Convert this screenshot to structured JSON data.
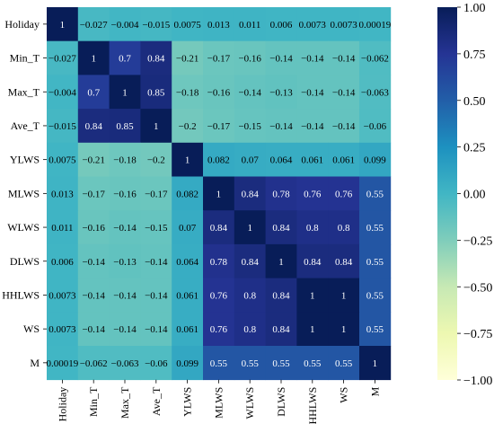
{
  "chart_data": {
    "type": "heatmap",
    "title": "",
    "xlabel": "",
    "ylabel": "",
    "labels": [
      "Holiday",
      "Min_T",
      "Max_T",
      "Ave_T",
      "YLWS",
      "MLWS",
      "WLWS",
      "DLWS",
      "HHLWS",
      "WS",
      "M"
    ],
    "values": [
      [
        1,
        -0.027,
        -0.004,
        -0.015,
        0.0075,
        0.013,
        0.011,
        0.006,
        0.0073,
        0.0073,
        0.00019
      ],
      [
        -0.027,
        1,
        0.7,
        0.84,
        -0.21,
        -0.17,
        -0.16,
        -0.14,
        -0.14,
        -0.14,
        -0.062
      ],
      [
        -0.004,
        0.7,
        1,
        0.85,
        -0.18,
        -0.16,
        -0.14,
        -0.13,
        -0.14,
        -0.14,
        -0.063
      ],
      [
        -0.015,
        0.84,
        0.85,
        1,
        -0.2,
        -0.17,
        -0.15,
        -0.14,
        -0.14,
        -0.14,
        -0.06
      ],
      [
        0.0075,
        -0.21,
        -0.18,
        -0.2,
        1,
        0.082,
        0.07,
        0.064,
        0.061,
        0.061,
        0.099
      ],
      [
        0.013,
        -0.17,
        -0.16,
        -0.17,
        0.082,
        1,
        0.84,
        0.78,
        0.76,
        0.76,
        0.55
      ],
      [
        0.011,
        -0.16,
        -0.14,
        -0.15,
        0.07,
        0.84,
        1,
        0.84,
        0.8,
        0.8,
        0.55
      ],
      [
        0.006,
        -0.14,
        -0.13,
        -0.14,
        0.064,
        0.78,
        0.84,
        1,
        0.84,
        0.84,
        0.55
      ],
      [
        0.0073,
        -0.14,
        -0.14,
        -0.14,
        0.061,
        0.76,
        0.8,
        0.84,
        1,
        1,
        0.55
      ],
      [
        0.0073,
        -0.14,
        -0.14,
        -0.14,
        0.061,
        0.76,
        0.8,
        0.84,
        1,
        1,
        0.55
      ],
      [
        0.00019,
        -0.062,
        -0.063,
        -0.06,
        0.099,
        0.55,
        0.55,
        0.55,
        0.55,
        0.55,
        1
      ]
    ],
    "colorbar": {
      "min": -1,
      "max": 1,
      "ticks": [
        "1.00",
        "0.75",
        "0.50",
        "0.25",
        "0.00",
        "−0.25",
        "−0.50",
        "−0.75",
        "−1.00"
      ],
      "colormap": "YlGnBu",
      "stops": [
        "#ffffd9",
        "#edf8b1",
        "#c7e9b4",
        "#7fcdbb",
        "#41b6c4",
        "#1d91c0",
        "#225ea8",
        "#253494",
        "#081d58"
      ]
    },
    "grid": false,
    "legend": "colorbar-right"
  }
}
